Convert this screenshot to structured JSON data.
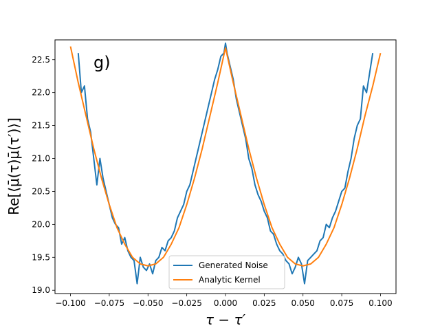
{
  "chart_data": {
    "type": "line",
    "panel_label": "g)",
    "xlabel": "τ − τ′",
    "ylabel": "Re[⟨μ̄(τ)μ̄(τ′)⟩]",
    "xlim": [
      -0.11,
      0.11
    ],
    "ylim": [
      18.95,
      22.8
    ],
    "x_ticks": [
      -0.1,
      -0.075,
      -0.05,
      -0.025,
      0.0,
      0.025,
      0.05,
      0.075,
      0.1
    ],
    "x_tick_labels": [
      "−0.100",
      "−0.075",
      "−0.050",
      "−0.025",
      "0.000",
      "0.025",
      "0.050",
      "0.075",
      "0.100"
    ],
    "y_ticks": [
      19.0,
      19.5,
      20.0,
      20.5,
      21.0,
      21.5,
      22.0,
      22.5
    ],
    "y_tick_labels": [
      "19.0",
      "19.5",
      "20.0",
      "20.5",
      "21.0",
      "21.5",
      "22.0",
      "22.5"
    ],
    "legend": {
      "location": "lower-center"
    },
    "series": [
      {
        "name": "Generated Noise",
        "color": "#1f77b4",
        "x": [
          -0.095,
          -0.093,
          -0.091,
          -0.089,
          -0.087,
          -0.085,
          -0.083,
          -0.081,
          -0.079,
          -0.077,
          -0.075,
          -0.073,
          -0.071,
          -0.069,
          -0.067,
          -0.065,
          -0.063,
          -0.061,
          -0.059,
          -0.057,
          -0.055,
          -0.053,
          -0.051,
          -0.049,
          -0.047,
          -0.045,
          -0.043,
          -0.041,
          -0.039,
          -0.037,
          -0.035,
          -0.033,
          -0.031,
          -0.029,
          -0.027,
          -0.025,
          -0.023,
          -0.021,
          -0.019,
          -0.017,
          -0.015,
          -0.013,
          -0.011,
          -0.009,
          -0.007,
          -0.005,
          -0.003,
          -0.001,
          0.0,
          0.001,
          0.003,
          0.005,
          0.007,
          0.009,
          0.011,
          0.013,
          0.015,
          0.017,
          0.019,
          0.021,
          0.023,
          0.025,
          0.027,
          0.029,
          0.031,
          0.033,
          0.035,
          0.037,
          0.039,
          0.041,
          0.043,
          0.045,
          0.047,
          0.049,
          0.051,
          0.053,
          0.055,
          0.057,
          0.059,
          0.061,
          0.063,
          0.065,
          0.067,
          0.069,
          0.071,
          0.073,
          0.075,
          0.077,
          0.079,
          0.081,
          0.083,
          0.085,
          0.087,
          0.089,
          0.091,
          0.093,
          0.095
        ],
        "y": [
          22.6,
          22.0,
          22.1,
          21.6,
          21.4,
          21.0,
          20.6,
          21.0,
          20.7,
          20.5,
          20.3,
          20.1,
          20.0,
          19.95,
          19.7,
          19.8,
          19.6,
          19.5,
          19.45,
          19.1,
          19.5,
          19.35,
          19.3,
          19.4,
          19.25,
          19.45,
          19.5,
          19.65,
          19.6,
          19.75,
          19.8,
          19.9,
          20.1,
          20.2,
          20.3,
          20.5,
          20.6,
          20.8,
          21.0,
          21.2,
          21.4,
          21.6,
          21.8,
          22.0,
          22.2,
          22.35,
          22.55,
          22.6,
          22.75,
          22.6,
          22.4,
          22.2,
          21.9,
          21.7,
          21.5,
          21.3,
          21.0,
          20.85,
          20.6,
          20.45,
          20.35,
          20.2,
          20.1,
          19.9,
          19.85,
          19.7,
          19.6,
          19.55,
          19.45,
          19.4,
          19.25,
          19.35,
          19.5,
          19.4,
          19.1,
          19.45,
          19.5,
          19.55,
          19.6,
          19.75,
          19.8,
          20.0,
          19.95,
          20.1,
          20.2,
          20.35,
          20.5,
          20.55,
          20.8,
          21.0,
          21.3,
          21.5,
          21.6,
          22.1,
          22.0,
          22.3,
          22.6
        ]
      },
      {
        "name": "Analytic Kernel",
        "color": "#ff7f0e",
        "x": [
          -0.1,
          -0.095,
          -0.09,
          -0.085,
          -0.08,
          -0.075,
          -0.07,
          -0.065,
          -0.06,
          -0.055,
          -0.05,
          -0.045,
          -0.04,
          -0.035,
          -0.03,
          -0.025,
          -0.02,
          -0.015,
          -0.01,
          -0.005,
          0.0,
          0.005,
          0.01,
          0.015,
          0.02,
          0.025,
          0.03,
          0.035,
          0.04,
          0.045,
          0.05,
          0.055,
          0.06,
          0.065,
          0.07,
          0.075,
          0.08,
          0.085,
          0.09,
          0.095,
          0.1
        ],
        "y": [
          22.7,
          22.15,
          21.65,
          21.15,
          20.7,
          20.3,
          19.95,
          19.7,
          19.5,
          19.4,
          19.37,
          19.4,
          19.5,
          19.7,
          19.95,
          20.3,
          20.7,
          21.15,
          21.65,
          22.15,
          22.68,
          22.15,
          21.65,
          21.15,
          20.7,
          20.3,
          19.95,
          19.7,
          19.5,
          19.4,
          19.37,
          19.4,
          19.5,
          19.7,
          19.95,
          20.3,
          20.7,
          21.15,
          21.65,
          22.1,
          22.6
        ]
      }
    ]
  }
}
